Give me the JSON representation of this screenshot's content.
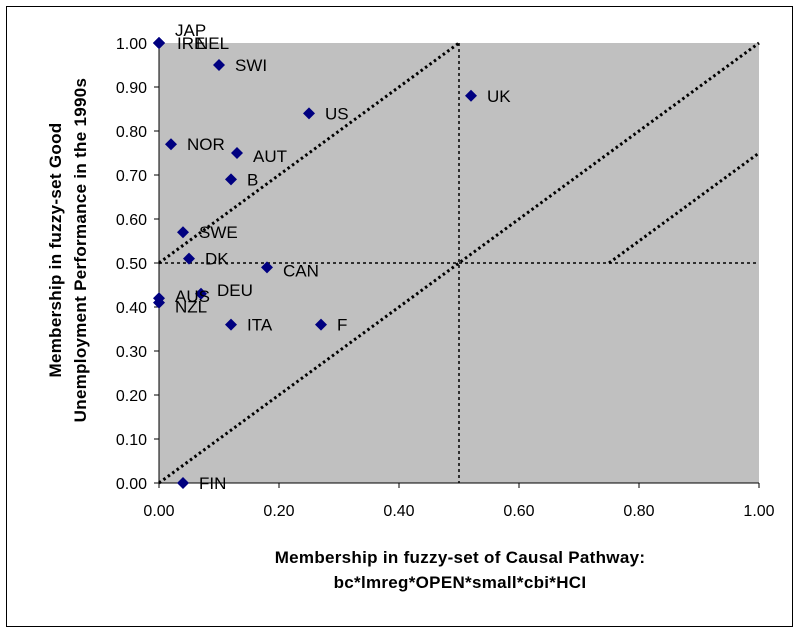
{
  "chart_data": {
    "type": "scatter",
    "title": "",
    "xlabel_lines": [
      "Membership in fuzzy-set of Causal Pathway:",
      "bc*lmreg*OPEN*small*cbi*HCI"
    ],
    "ylabel_lines": [
      "Membership in fuzzy-set Good",
      "Unemployment Performance in the 1990s"
    ],
    "xlim": [
      0,
      1
    ],
    "ylim": [
      0,
      1
    ],
    "x_ticks": [
      "0.00",
      "0.20",
      "0.40",
      "0.60",
      "0.80",
      "1.00"
    ],
    "y_ticks": [
      "0.00",
      "0.10",
      "0.20",
      "0.30",
      "0.40",
      "0.50",
      "0.60",
      "0.70",
      "0.80",
      "0.90",
      "1.00"
    ],
    "grid": false,
    "plot_background": "#c0c0c0",
    "marker_color": "#000080",
    "points": [
      {
        "label": "IRE",
        "x": 0.0,
        "y": 1.0
      },
      {
        "label": "NEL",
        "x": 0.0,
        "y": 1.0
      },
      {
        "label": "JAP",
        "x": 0.0,
        "y": 1.0
      },
      {
        "label": "SWI",
        "x": 0.1,
        "y": 0.95
      },
      {
        "label": "UK",
        "x": 0.52,
        "y": 0.88
      },
      {
        "label": "US",
        "x": 0.25,
        "y": 0.84
      },
      {
        "label": "NOR",
        "x": 0.02,
        "y": 0.77
      },
      {
        "label": "AUT",
        "x": 0.13,
        "y": 0.75
      },
      {
        "label": "B",
        "x": 0.12,
        "y": 0.69
      },
      {
        "label": "SWE",
        "x": 0.04,
        "y": 0.57
      },
      {
        "label": "DK",
        "x": 0.05,
        "y": 0.51
      },
      {
        "label": "CAN",
        "x": 0.18,
        "y": 0.49
      },
      {
        "label": "DEU",
        "x": 0.07,
        "y": 0.43
      },
      {
        "label": "AUS",
        "x": 0.0,
        "y": 0.42
      },
      {
        "label": "NZL",
        "x": 0.0,
        "y": 0.41
      },
      {
        "label": "ITA",
        "x": 0.12,
        "y": 0.36
      },
      {
        "label": "F",
        "x": 0.27,
        "y": 0.36
      },
      {
        "label": "FIN",
        "x": 0.04,
        "y": 0.0
      }
    ],
    "diagonal_lines": [
      {
        "x1": 0.0,
        "y1": 0.5,
        "x2": 0.5,
        "y2": 1.0
      },
      {
        "x1": 0.0,
        "y1": 0.0,
        "x2": 1.0,
        "y2": 1.0
      },
      {
        "x1": 0.75,
        "y1": 0.5,
        "x2": 1.0,
        "y2": 0.75
      }
    ],
    "reference_lines": [
      {
        "orientation": "vertical",
        "x": 0.5
      },
      {
        "orientation": "horizontal",
        "y": 0.5
      }
    ]
  }
}
